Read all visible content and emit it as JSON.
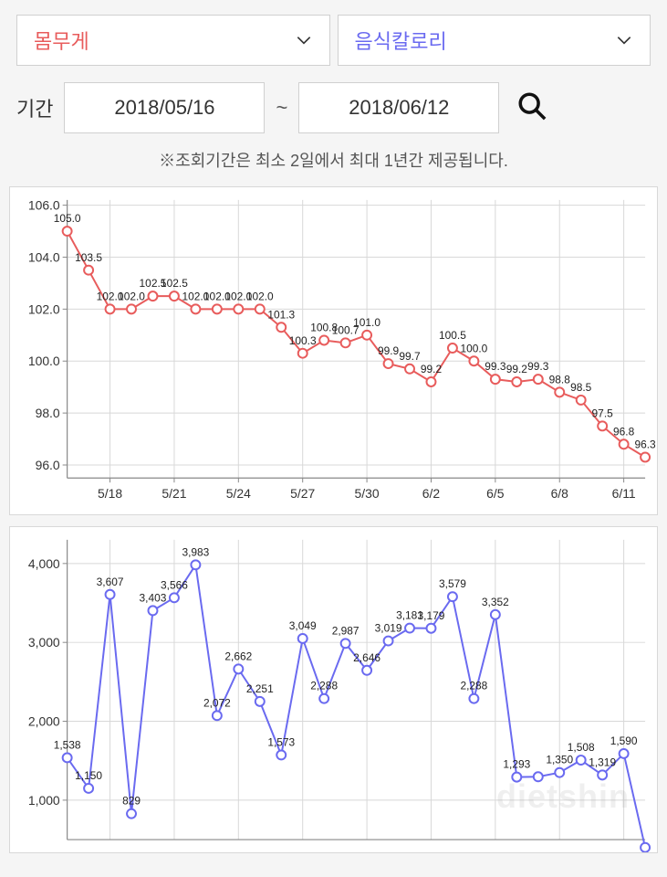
{
  "selectors": {
    "left": {
      "label": "몸무게",
      "color": "#e85c5c"
    },
    "right": {
      "label": "음식칼로리",
      "color": "#6a6af0"
    }
  },
  "dateRange": {
    "label": "기간",
    "start": "2018/05/16",
    "end": "2018/06/12",
    "tilde": "~"
  },
  "note": "※조회기간은 최소 2일에서 최대 1년간 제공됩니다.",
  "chart1": {
    "type": "line",
    "background_color": "#ffffff",
    "grid_color": "#d8d8d8",
    "axis_color": "#888888",
    "line_color": "#e85c5c",
    "marker_fill": "#ffffff",
    "marker_stroke": "#e85c5c",
    "line_width": 2,
    "marker_radius": 5,
    "label_fontsize": 12,
    "tick_fontsize": 14,
    "ylim": [
      95.5,
      106.2
    ],
    "yticks": [
      96.0,
      98.0,
      100.0,
      102.0,
      104.0,
      106.0
    ],
    "xticks_idx": [
      2,
      5,
      8,
      11,
      14,
      17,
      20,
      23,
      26
    ],
    "xticks_label": [
      "5/18",
      "5/21",
      "5/24",
      "5/27",
      "5/30",
      "6/2",
      "6/5",
      "6/8",
      "6/11"
    ],
    "x": [
      0,
      1,
      2,
      3,
      4,
      5,
      6,
      7,
      8,
      9,
      10,
      11,
      12,
      13,
      14,
      15,
      16,
      17,
      18,
      19,
      20,
      21,
      22,
      23,
      24,
      25,
      26,
      27
    ],
    "y": [
      105.0,
      103.5,
      102.0,
      102.0,
      102.5,
      102.5,
      102.0,
      102.0,
      102.0,
      102.0,
      101.3,
      100.3,
      100.8,
      100.7,
      101.0,
      99.9,
      99.7,
      99.2,
      100.5,
      100.0,
      99.3,
      99.2,
      99.3,
      98.8,
      98.5,
      97.5,
      96.8,
      96.3
    ],
    "labels": [
      "105.0",
      "103.5",
      "102.0",
      "102.0",
      "102.5",
      "102.5",
      "102.0",
      "102.0",
      "102.0",
      "102.0",
      "101.3",
      "100.3",
      "100.8",
      "100.7",
      "101.0",
      "99.9",
      "99.7",
      "99.2",
      "100.5",
      "100.0",
      "99.3",
      "99.2",
      "99.3",
      "98.8",
      "98.5",
      "97.5",
      "96.8",
      "96.3"
    ]
  },
  "chart2": {
    "type": "line",
    "background_color": "#ffffff",
    "grid_color": "#d8d8d8",
    "axis_color": "#888888",
    "line_color": "#6a6af0",
    "marker_fill": "#ffffff",
    "marker_stroke": "#6a6af0",
    "line_width": 2,
    "marker_radius": 5,
    "label_fontsize": 12,
    "tick_fontsize": 14,
    "ylim": [
      500,
      4300
    ],
    "yticks": [
      1000,
      2000,
      3000,
      4000
    ],
    "watermark": "dietshin",
    "xticks_idx": [
      2,
      5,
      8,
      11,
      14,
      17,
      20,
      23,
      26
    ],
    "xticks_label": [
      "5/18",
      "5/21",
      "5/24",
      "5/27",
      "5/30",
      "6/2",
      "6/5",
      "6/8",
      "6/11"
    ],
    "x": [
      0,
      1,
      2,
      3,
      4,
      5,
      6,
      7,
      8,
      9,
      10,
      11,
      12,
      13,
      14,
      15,
      16,
      17,
      18,
      19,
      20,
      21,
      22,
      23,
      24,
      25,
      26,
      27
    ],
    "y": [
      1538,
      1150,
      3607,
      829,
      3403,
      3566,
      3983,
      2072,
      2662,
      2251,
      1573,
      3049,
      2288,
      2987,
      2646,
      3019,
      3181,
      3179,
      3579,
      2288,
      3352,
      1293,
      1297,
      1350,
      1508,
      1319,
      1590,
      400
    ],
    "labels": [
      "1,538",
      "1,150",
      "3,607",
      "829",
      "3,403",
      "3,566",
      "3,983",
      "2,072",
      "2,662",
      "2,251",
      "1,573",
      "3,049",
      "2,288",
      "2,987",
      "2,646",
      "3,019",
      "3,181",
      "3,179",
      "3,579",
      "2,288",
      "3,352",
      "1,293",
      "",
      "1,350",
      "1,508",
      "1,319",
      "1,590",
      ""
    ]
  }
}
